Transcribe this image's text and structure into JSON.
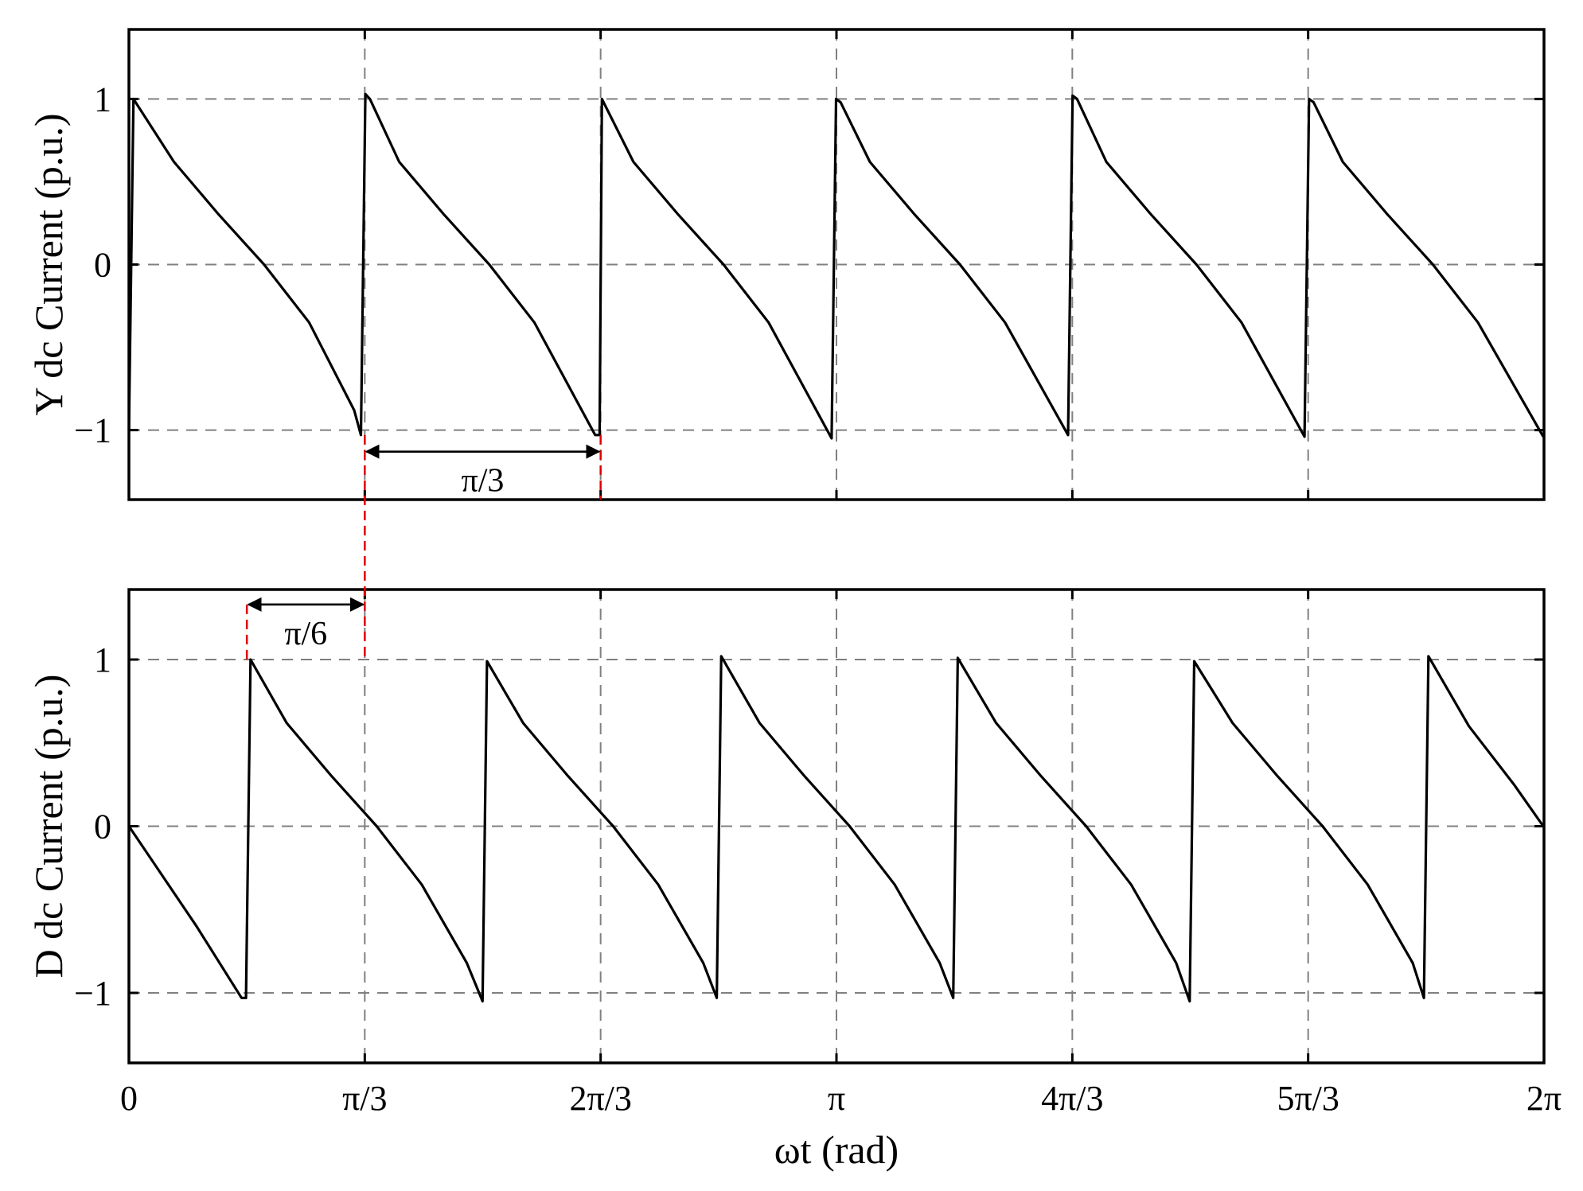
{
  "chart_data": [
    {
      "type": "line",
      "panel": "top",
      "ylabel": "Y dc Current  (p.u.)",
      "xlabel": "",
      "xlim": [
        0,
        6.2832
      ],
      "ylim": [
        -1.42,
        1.42
      ],
      "grid": true,
      "y_ticks": [
        {
          "value": -1,
          "label": "−1"
        },
        {
          "value": 0,
          "label": "0"
        },
        {
          "value": 1,
          "label": "1"
        }
      ],
      "series": [
        {
          "color": "#000000",
          "x": [
            0,
            0.02,
            0.2,
            0.4,
            0.6,
            0.8,
            1.0,
            1.03,
            1.05,
            1.07,
            1.2,
            1.4,
            1.6,
            1.8,
            2.07,
            2.09,
            2.1,
            2.24,
            2.44,
            2.64,
            2.84,
            3.12,
            3.14,
            3.16,
            3.29,
            3.49,
            3.69,
            3.89,
            4.17,
            4.19,
            4.21,
            4.34,
            4.54,
            4.74,
            4.94,
            5.22,
            5.24,
            5.26,
            5.39,
            5.59,
            5.79,
            5.99,
            6.28
          ],
          "y": [
            -1,
            1,
            0.62,
            0.3,
            0.0,
            -0.35,
            -0.88,
            -1.03,
            1.03,
            1.0,
            0.62,
            0.3,
            0.0,
            -0.35,
            -1.03,
            -1.03,
            1.0,
            0.62,
            0.3,
            0.0,
            -0.35,
            -1.05,
            1.0,
            0.98,
            0.62,
            0.3,
            0.0,
            -0.35,
            -1.03,
            1.02,
            1.0,
            0.62,
            0.3,
            0.0,
            -0.35,
            -1.04,
            1.0,
            0.98,
            0.62,
            0.3,
            0.0,
            -0.35,
            -1.04
          ]
        }
      ],
      "annotations": [
        {
          "label": "π/3",
          "x_from": 1.0472,
          "x_to": 2.0944,
          "y": -1.13
        }
      ]
    },
    {
      "type": "line",
      "panel": "bottom",
      "ylabel": "D dc Current  (p.u.)",
      "xlabel": "ωt (rad)",
      "xlim": [
        0,
        6.2832
      ],
      "ylim": [
        -1.42,
        1.42
      ],
      "grid": true,
      "x_ticks": [
        {
          "value": 0,
          "label": "0"
        },
        {
          "value": 1.0472,
          "label": "π/3"
        },
        {
          "value": 2.0944,
          "label": "2π/3"
        },
        {
          "value": 3.1416,
          "label": "π"
        },
        {
          "value": 4.1888,
          "label": "4π/3"
        },
        {
          "value": 5.236,
          "label": "5π/3"
        },
        {
          "value": 6.2832,
          "label": "2π"
        }
      ],
      "y_ticks": [
        {
          "value": -1,
          "label": "−1"
        },
        {
          "value": 0,
          "label": "0"
        },
        {
          "value": 1,
          "label": "1"
        }
      ],
      "series": [
        {
          "color": "#000000",
          "x": [
            0,
            0.1,
            0.3,
            0.5,
            0.52,
            0.54,
            0.7,
            0.9,
            1.1,
            1.3,
            1.5,
            1.57,
            1.59,
            1.75,
            1.95,
            2.15,
            2.35,
            2.55,
            2.61,
            2.63,
            2.8,
            3.0,
            3.2,
            3.4,
            3.6,
            3.66,
            3.68,
            3.85,
            4.05,
            4.25,
            4.45,
            4.65,
            4.71,
            4.73,
            4.9,
            5.1,
            5.3,
            5.5,
            5.7,
            5.75,
            5.77,
            5.95,
            6.15,
            6.28
          ],
          "y": [
            0,
            -0.2,
            -0.6,
            -1.03,
            -1.03,
            1.0,
            0.62,
            0.3,
            0.0,
            -0.35,
            -0.82,
            -1.05,
            0.99,
            0.62,
            0.3,
            0.0,
            -0.35,
            -0.82,
            -1.03,
            1.02,
            0.62,
            0.3,
            0.0,
            -0.35,
            -0.82,
            -1.03,
            1.01,
            0.62,
            0.3,
            0.0,
            -0.35,
            -0.82,
            -1.05,
            0.99,
            0.62,
            0.3,
            0.0,
            -0.35,
            -0.82,
            -1.03,
            1.02,
            0.6,
            0.25,
            0.0
          ]
        }
      ],
      "annotations": [
        {
          "label": "π/6",
          "x_from": 0.5236,
          "x_to": 1.0472,
          "y": 1.33
        }
      ]
    }
  ]
}
